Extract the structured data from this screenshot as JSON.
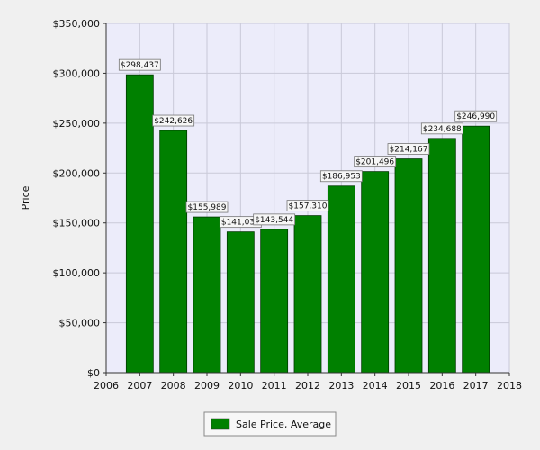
{
  "chart_data": {
    "type": "bar",
    "x": [
      2007,
      2008,
      2009,
      2010,
      2011,
      2012,
      2013,
      2014,
      2015,
      2016,
      2017
    ],
    "values": [
      298437,
      242626,
      155989,
      141039,
      143544,
      157310,
      186953,
      201496,
      214167,
      234688,
      246990
    ],
    "data_labels": [
      "$298,437",
      "$242,626",
      "$155,989",
      "$141,039",
      "$143,544",
      "$157,310",
      "$186,953",
      "$201,496",
      "$214,167",
      "$234,688",
      "$246,990"
    ],
    "series": [
      {
        "name": "Sale Price, Average"
      }
    ],
    "ylabel": "Price",
    "xlabel": "",
    "xlim": [
      2006,
      2018
    ],
    "ylim": [
      0,
      350000
    ],
    "x_ticks": [
      "2006",
      "2007",
      "2008",
      "2009",
      "2010",
      "2011",
      "2012",
      "2013",
      "2014",
      "2015",
      "2016",
      "2017",
      "2018"
    ],
    "y_ticks": [
      "$0",
      "$50,000",
      "$100,000",
      "$150,000",
      "$200,000",
      "$250,000",
      "$300,000",
      "$350,000"
    ],
    "grid": true,
    "legend_position": "bottom-center",
    "colors": {
      "bar": "#008000",
      "plot_background": "#ececfa",
      "page_background": "#f0f0f0"
    }
  }
}
